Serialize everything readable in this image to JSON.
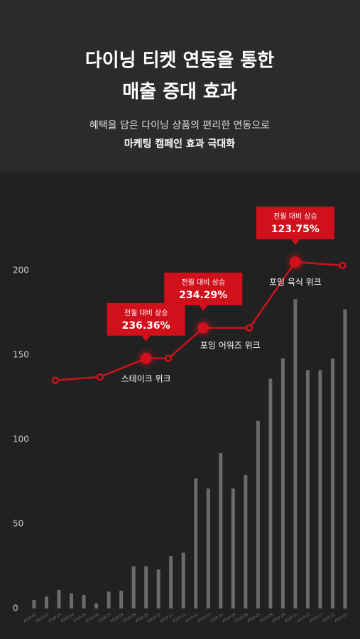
{
  "header": {
    "title_lines": [
      "다이닝 티켓 연동을 통한",
      "매출 증대 효과"
    ],
    "subtitle_lines": [
      "혜택을 담은 다이닝 상품의 편리한 연동으로",
      "마케팅 캠페인 효과 극대화"
    ]
  },
  "chart_data": {
    "type": "bar_line",
    "categories": [
      "2018.01",
      "2018.02",
      "2018.03",
      "2018.04",
      "2018.05",
      "2018.06",
      "2018.07",
      "2018.08",
      "2018.09",
      "2018.10",
      "2018.11",
      "2018.12",
      "2019.01",
      "2019.02",
      "2019.03",
      "2019.04",
      "2019.05",
      "2019.06",
      "2019.07",
      "2019.08",
      "2019.09",
      "2019.10",
      "2019.11",
      "2019.12",
      "2020.01",
      "2020.02"
    ],
    "bars": {
      "color": "#6b6b6b",
      "values": [
        5,
        7,
        11,
        9,
        8,
        3,
        10,
        10.5,
        25,
        25,
        23,
        31,
        33,
        77,
        71,
        92,
        71,
        79,
        111,
        136,
        148,
        183,
        141,
        141,
        148,
        177
      ]
    },
    "line": {
      "color": "#d0111b",
      "x": [
        1.7,
        5.3,
        9.0,
        10.8,
        13.6,
        17.3,
        21.0,
        24.8
      ],
      "values": [
        135,
        137,
        148,
        148,
        166,
        166,
        205,
        203
      ]
    },
    "ylim": [
      0,
      200
    ],
    "yticks": [
      0,
      50,
      100,
      150,
      200
    ],
    "annotations": [
      {
        "point": 2,
        "title": "전월 대비 상승",
        "value": "236.36%",
        "label": "스테이크 위크"
      },
      {
        "point": 4,
        "title": "전월 대비 상승",
        "value": "234.29%",
        "label": "포잉 어워즈 위크"
      },
      {
        "point": 6,
        "title": "전월 대비 상승",
        "value": "123.75%",
        "label": "포잉 육식 위크"
      }
    ]
  }
}
